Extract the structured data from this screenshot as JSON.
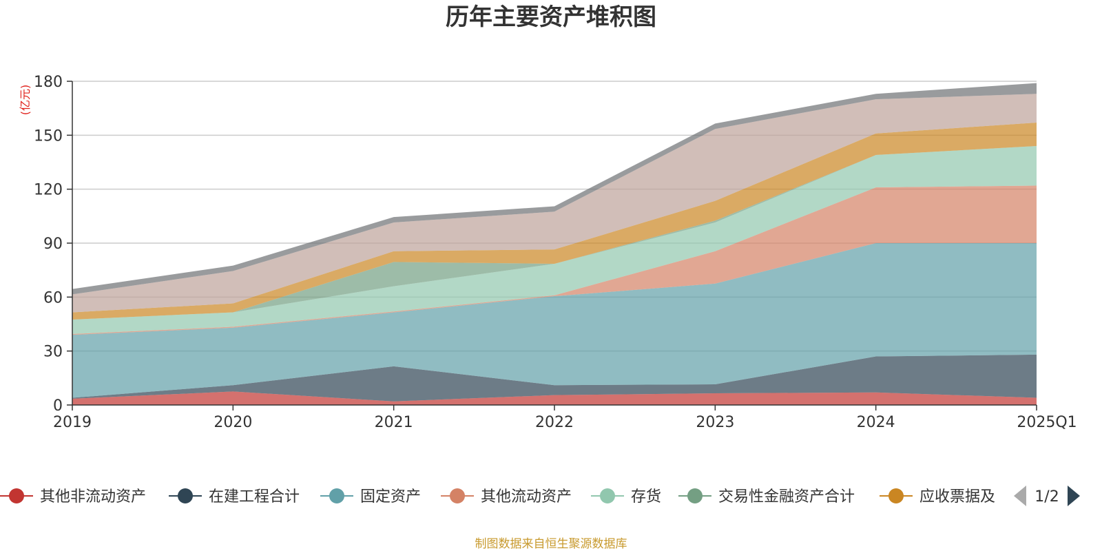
{
  "chart_data": {
    "type": "area",
    "stacked": true,
    "title": "历年主要资产堆积图",
    "unit": "(亿元)",
    "categories": [
      "2019",
      "2020",
      "2021",
      "2022",
      "2023",
      "2024",
      "2025Q1"
    ],
    "ylim": [
      0,
      180
    ],
    "yticks": [
      "0",
      "30",
      "60",
      "90",
      "120",
      "150",
      "180"
    ],
    "grid": true,
    "series": [
      {
        "name": "其他非流动资产",
        "color": "#c23531",
        "values": [
          3.5,
          7.5,
          2.0,
          5.5,
          6.5,
          7.0,
          4.0
        ],
        "in_legend": true
      },
      {
        "name": "在建工程合计",
        "color": "#2f4554",
        "values": [
          0.5,
          3.5,
          19.5,
          5.5,
          5.0,
          20.0,
          24.0
        ],
        "in_legend": true
      },
      {
        "name": "固定资产",
        "color": "#61a0a8",
        "values": [
          35,
          32,
          30,
          49.5,
          56,
          63,
          62
        ],
        "in_legend": true
      },
      {
        "name": "其他流动资产",
        "color": "#d48265",
        "values": [
          0.5,
          0.5,
          0.5,
          0.5,
          18,
          31,
          32
        ],
        "in_legend": true
      },
      {
        "name": "存货",
        "color": "#91c7ae",
        "values": [
          8,
          8,
          14,
          17.5,
          16,
          18,
          22
        ],
        "in_legend": true
      },
      {
        "name": "交易性金融资产合计",
        "color": "#749f83",
        "values": [
          0,
          0,
          13.5,
          0,
          1,
          0,
          0
        ],
        "in_legend": true
      },
      {
        "name": "应收票据及",
        "color": "#ca8622",
        "values": [
          4,
          5,
          6,
          8,
          11,
          12,
          13
        ],
        "in_legend": true
      },
      {
        "name": "",
        "color": "#bda29a",
        "values": [
          10,
          18,
          16,
          21,
          40,
          19,
          16
        ],
        "in_legend": false
      },
      {
        "name": "",
        "color": "#6e7074",
        "values": [
          3,
          3,
          3,
          3,
          3,
          3,
          6
        ],
        "in_legend": false
      }
    ],
    "legend_placement": "bottom",
    "legend_page": "1/2"
  },
  "source_note": "制图数据来自恒生聚源数据库"
}
